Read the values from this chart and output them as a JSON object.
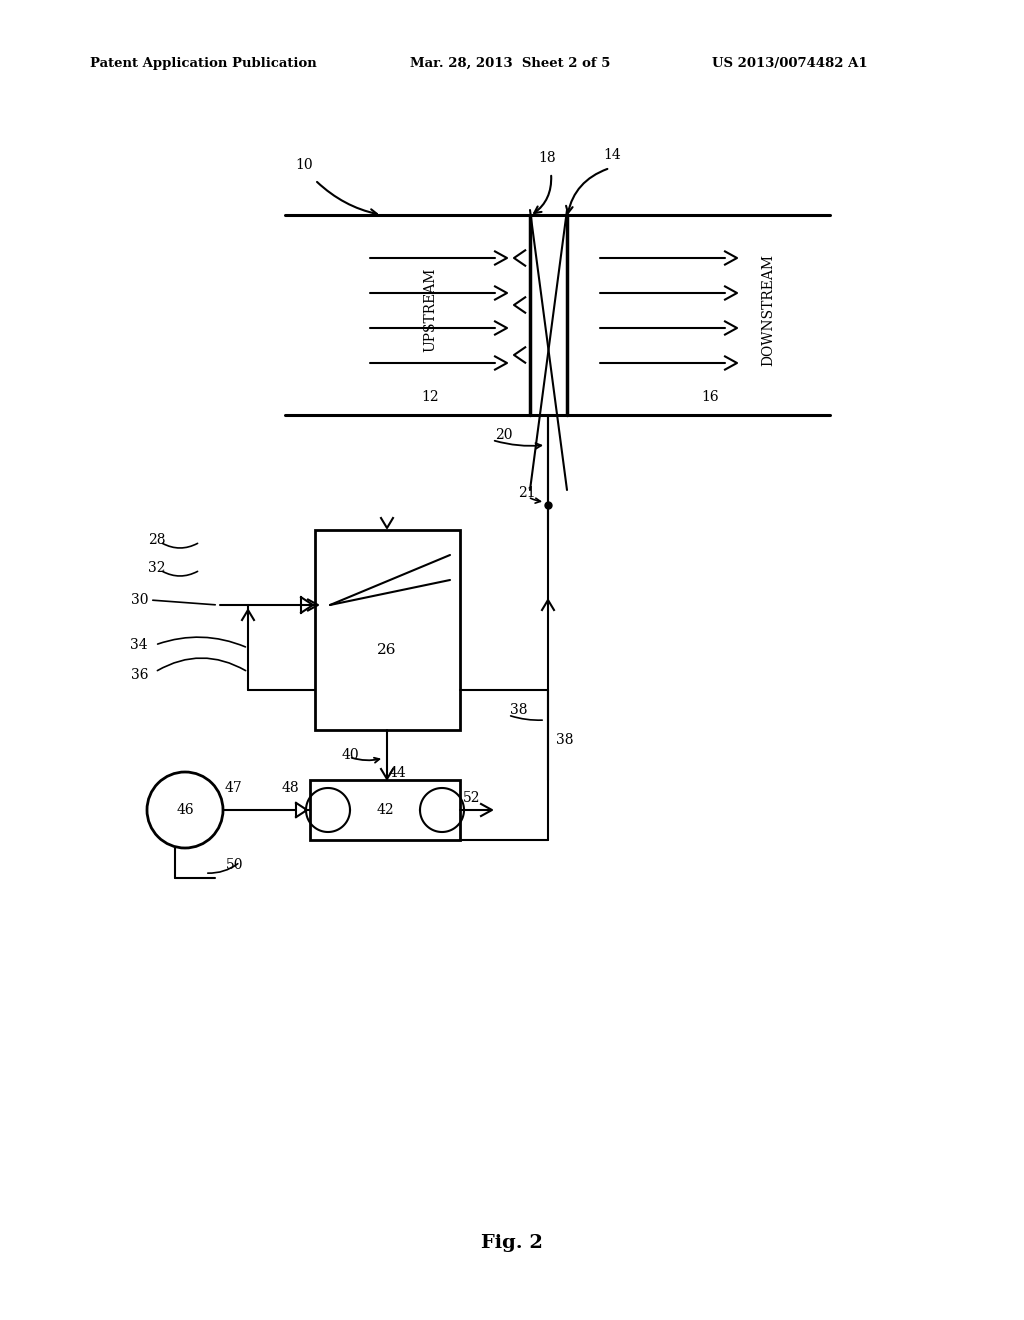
{
  "header_left": "Patent Application Publication",
  "header_mid": "Mar. 28, 2013  Sheet 2 of 5",
  "header_right": "US 2013/0074482 A1",
  "footer_label": "Fig. 2",
  "bg_color": "#ffffff",
  "line_color": "#000000"
}
